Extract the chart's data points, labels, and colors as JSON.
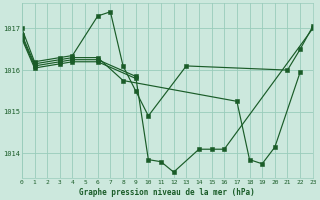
{
  "background_color": "#cce8dd",
  "grid_color": "#99ccbb",
  "line_color": "#1a5c28",
  "title": "Graphe pression niveau de la mer (hPa)",
  "ylabel_ticks": [
    1014,
    1015,
    1016,
    1017
  ],
  "xlim": [
    0,
    23
  ],
  "ylim": [
    1013.4,
    1017.6
  ],
  "series": [
    {
      "comment": "line1: starts high at 0=1017, drops to 1=1016.2, 3=1016.3, 4=1016.35, 6=1017.3, 7=1017.4, 8=1016.1, 9=1015.5, 10=1014.9, 13=1016.1, 21=1016.0, 22=1016.5, 23=1017.05",
      "x": [
        0,
        1,
        3,
        4,
        6,
        7,
        8,
        9,
        10,
        13,
        21,
        22,
        23
      ],
      "y": [
        1017.0,
        1016.2,
        1016.3,
        1016.35,
        1017.3,
        1017.4,
        1016.1,
        1015.5,
        1014.9,
        1016.1,
        1016.0,
        1016.5,
        1017.05
      ]
    },
    {
      "comment": "line2: 0=1016.85, 1=1016.15, 3=1016.25, 4=1016.3, 6=1016.3, 8=1015.75, 17=1015.25, 18=1013.85, 19=1013.75, 20=1014.15, 22=1015.95",
      "x": [
        0,
        1,
        3,
        4,
        6,
        8,
        17,
        18,
        19,
        20,
        22
      ],
      "y": [
        1016.85,
        1016.15,
        1016.25,
        1016.3,
        1016.3,
        1015.75,
        1015.25,
        1013.85,
        1013.75,
        1014.15,
        1015.95
      ]
    },
    {
      "comment": "line3: 0=1016.8, 1=1016.1, 3=1016.2, 4=1016.25, 6=1016.25, 9=1015.85, 10=1013.85, 11=1013.8, 12=1013.55, 14=1014.1, 15=1014.1, 16=1014.1, 23=1017.0",
      "x": [
        0,
        1,
        3,
        4,
        6,
        9,
        10,
        11,
        12,
        14,
        15,
        16,
        23
      ],
      "y": [
        1016.8,
        1016.1,
        1016.2,
        1016.25,
        1016.25,
        1015.85,
        1013.85,
        1013.8,
        1013.55,
        1014.1,
        1014.1,
        1014.1,
        1017.0
      ]
    },
    {
      "comment": "line4: 0=1016.75, 1=1016.05, 3=1016.15, 4=1016.2, 6=1016.2, end around 9 or 10",
      "x": [
        0,
        1,
        3,
        4,
        6,
        9
      ],
      "y": [
        1016.75,
        1016.05,
        1016.15,
        1016.2,
        1016.2,
        1015.8
      ]
    }
  ]
}
